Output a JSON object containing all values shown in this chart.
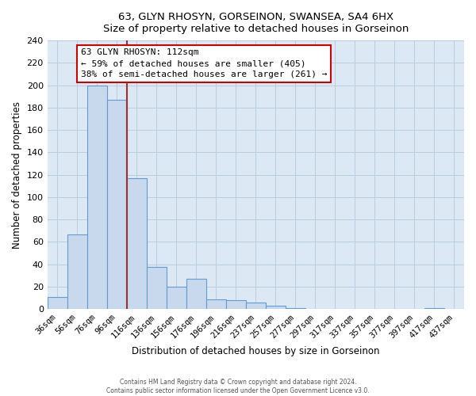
{
  "title": "63, GLYN RHOSYN, GORSEINON, SWANSEA, SA4 6HX",
  "subtitle": "Size of property relative to detached houses in Gorseinon",
  "xlabel": "Distribution of detached houses by size in Gorseinon",
  "ylabel": "Number of detached properties",
  "bar_labels": [
    "36sqm",
    "56sqm",
    "76sqm",
    "96sqm",
    "116sqm",
    "136sqm",
    "156sqm",
    "176sqm",
    "196sqm",
    "216sqm",
    "237sqm",
    "257sqm",
    "277sqm",
    "297sqm",
    "317sqm",
    "337sqm",
    "357sqm",
    "377sqm",
    "397sqm",
    "417sqm",
    "437sqm"
  ],
  "bar_values": [
    11,
    67,
    200,
    187,
    117,
    38,
    20,
    27,
    9,
    8,
    6,
    3,
    1,
    0,
    0,
    0,
    0,
    0,
    0,
    1,
    0
  ],
  "bar_color": "#c8d9ee",
  "bar_edge_color": "#6699cc",
  "annotation_title": "63 GLYN RHOSYN: 112sqm",
  "annotation_line1": "← 59% of detached houses are smaller (405)",
  "annotation_line2": "38% of semi-detached houses are larger (261) →",
  "annotation_box_color": "#ffffff",
  "annotation_box_edge_color": "#cc0000",
  "vline_color": "#993333",
  "ylim": [
    0,
    240
  ],
  "yticks": [
    0,
    20,
    40,
    60,
    80,
    100,
    120,
    140,
    160,
    180,
    200,
    220,
    240
  ],
  "footer_line1": "Contains HM Land Registry data © Crown copyright and database right 2024.",
  "footer_line2": "Contains public sector information licensed under the Open Government Licence v3.0.",
  "background_color": "#ffffff",
  "plot_bg_color": "#dce9f5",
  "grid_color": "#b8cfe0"
}
